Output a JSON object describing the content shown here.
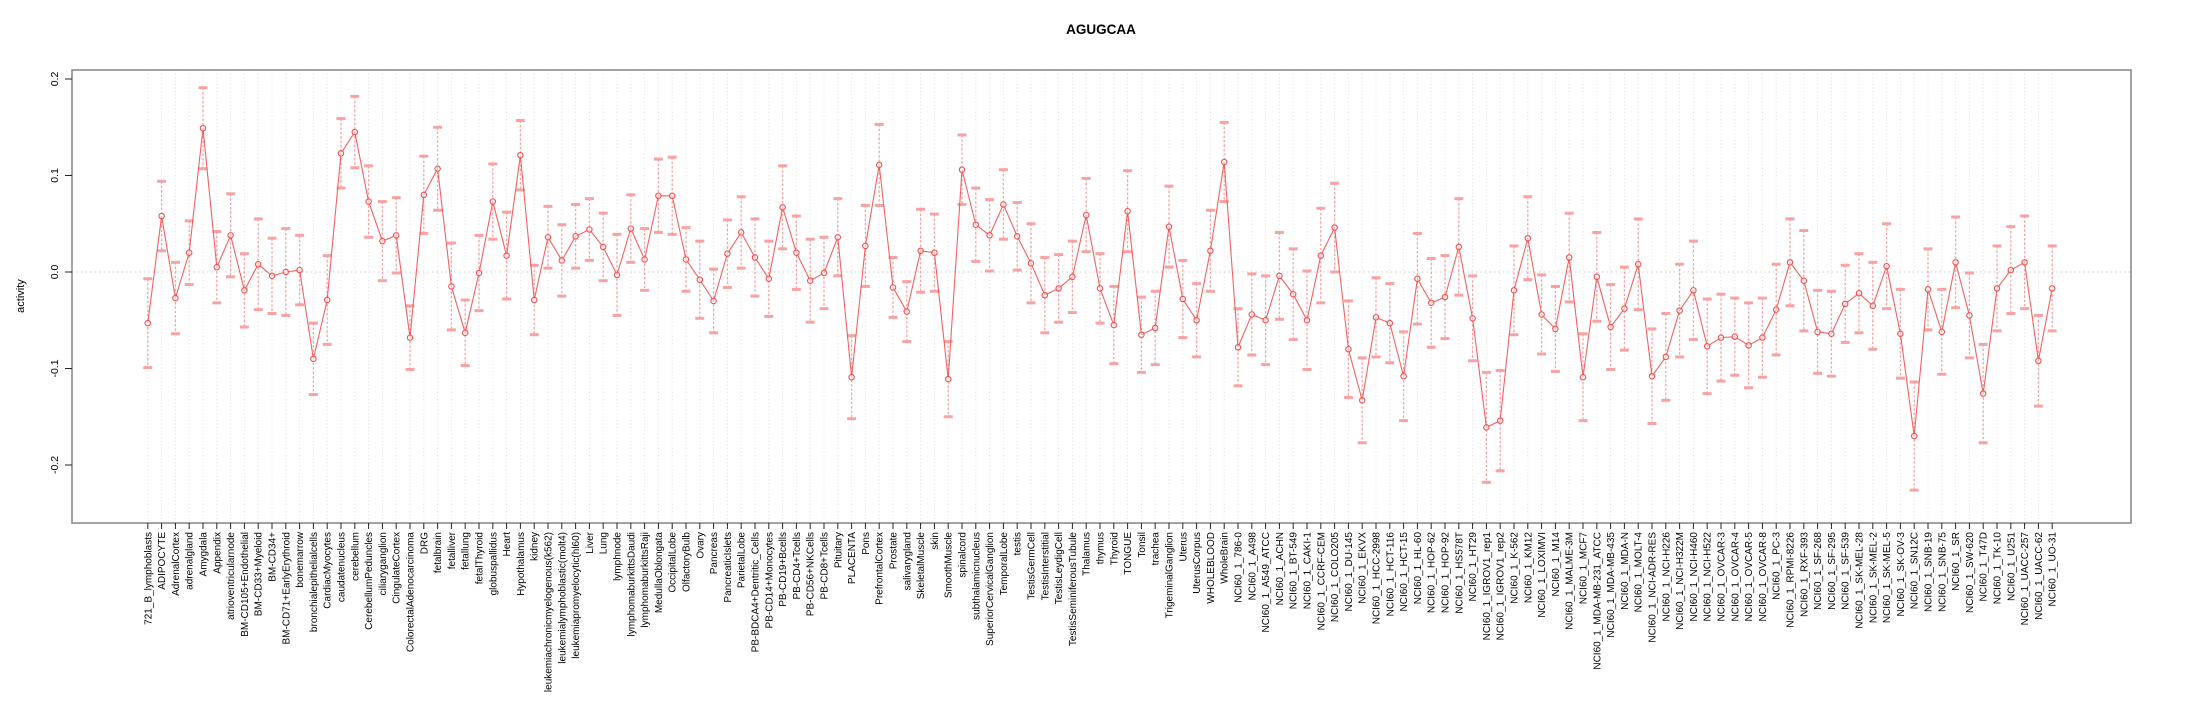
{
  "figure": {
    "title": "AGUGCAA",
    "ylabel": "activity"
  },
  "chart_data": {
    "type": "line",
    "title": "AGUGCAA",
    "xlabel": "",
    "ylabel": "activity",
    "ylim": [
      -0.26,
      0.21
    ],
    "yticks": [
      -0.2,
      -0.1,
      0.0,
      0.1,
      0.2
    ],
    "legend": "none",
    "grid": "vertical dotted line per category; dotted horizontal line at 0",
    "marker": "open-circle",
    "series_color": "#f25050",
    "errorbar_color": "#f89f9f",
    "grid_color": "#dedede",
    "box_color": "#8c8c8c",
    "categories": [
      "721_B_lymphoblasts",
      "ADIPOCYTE",
      "AdrenalCortex",
      "adrenalgland",
      "Amygdala",
      "Appendix",
      "atrioventricularnode",
      "BM-CD105+Endothelial",
      "BM-CD33+Myeloid",
      "BM-CD34+",
      "BM-CD71+EarlyErythroid",
      "bonemarrow",
      "bronchialepithelialcells",
      "CardiacMyocytes",
      "caudatenucleus",
      "cerebellum",
      "CerebellumPeduncles",
      "ciliaryganglion",
      "CingulateCortex",
      "ColorectalAdenocarcinoma",
      "DRG",
      "fetalbrain",
      "fetalliver",
      "fetallung",
      "fetalThyroid",
      "globuspallidus",
      "Heart",
      "Hypothalamus",
      "kidney",
      "leukemiachronicmyelogenous(k562)",
      "leukemialymphoblastic(molt4)",
      "leukemiapromyelocytic(hl60)",
      "Liver",
      "Lung",
      "lymphnode",
      "lymphomaburkittsDaudi",
      "lymphomaburkittsRaji",
      "MedullaOblongata",
      "OccipitalLobe",
      "OlfactoryBulb",
      "Ovary",
      "Pancreas",
      "PancreaticIslets",
      "ParietalLobe",
      "PB-BDCA4+Dentritic_Cells",
      "PB-CD14+Monocytes",
      "PB-CD19+Bcells",
      "PB-CD4+Tcells",
      "PB-CD56+NKCells",
      "PB-CD8+Tcells",
      "Pituitary",
      "PLACENTA",
      "Pons",
      "PrefrontalCortex",
      "Prostate",
      "salivarygland",
      "SkeletalMuscle",
      "skin",
      "SmoothMuscle",
      "spinalcord",
      "subthalamicnucleus",
      "SuperiorCervicalGanglion",
      "TemporalLobe",
      "testis",
      "TestisGermCell",
      "TestisInterstitial",
      "TestisLeydigCell",
      "TestisSeminiferousTubule",
      "Thalamus",
      "thymus",
      "Thyroid",
      "TONGUE",
      "Tonsil",
      "trachea",
      "TrigeminalGanglion",
      "Uterus",
      "UterusCorpus",
      "WHOLEBLOOD",
      "WholeBrain",
      "NCI60_1_786-0",
      "NCI60_1_A498",
      "NCI60_1_A549_ATCC",
      "NCI60_1_ACHN",
      "NCI60_1_BT-549",
      "NCI60_1_CAKI-1",
      "NCI60_1_CCRF-CEM",
      "NCI60_1_COLO205",
      "NCI60_1_DU-145",
      "NCI60_1_EKVX",
      "NCI60_1_HCC-2998",
      "NCI60_1_HCT-116",
      "NCI60_1_HCT-15",
      "NCI60_1_HL-60",
      "NCI60_1_HOP-62",
      "NCI60_1_HOP-92",
      "NCI60_1_HS578T",
      "NCI60_1_HT29",
      "NCI60_1_IGROV1_rep1",
      "NCI60_1_IGROV1_rep2",
      "NCI60_1_K-562",
      "NCI60_1_KM12",
      "NCI60_1_LOXIMVI",
      "NCI60_1_M14",
      "NCI60_1_MALME-3M",
      "NCI60_1_MCF7",
      "NCI60_1_MDA-MB-231_ATCC",
      "NCI60_1_MDA-MB-435",
      "NCI60_1_MDA-N",
      "NCI60_1_MOLT-4",
      "NCI60_1_NCI-ADR-RES",
      "NCI60_1_NCI-H226",
      "NCI60_1_NCI-H322M",
      "NCI60_1_NCI-H460",
      "NCI60_1_NCI-H522",
      "NCI60_1_OVCAR-3",
      "NCI60_1_OVCAR-4",
      "NCI60_1_OVCAR-5",
      "NCI60_1_OVCAR-8",
      "NCI60_1_PC-3",
      "NCI60_1_RPMI-8226",
      "NCI60_1_RXF-393",
      "NCI60_1_SF-268",
      "NCI60_1_SF-295",
      "NCI60_1_SF-539",
      "NCI60_1_SK-MEL-28",
      "NCI60_1_SK-MEL-2",
      "NCI60_1_SK-MEL-5",
      "NCI60_1_SK-OV-3",
      "NCI60_1_SN12C",
      "NCI60_1_SNB-19",
      "NCI60_1_SNB-75",
      "NCI60_1_SR",
      "NCI60_1_SW-620",
      "NCI60_1_T47D",
      "NCI60_1_TK-10",
      "NCI60_1_U251",
      "NCI60_1_UACC-257",
      "NCI60_1_UACC-62",
      "NCI60_1_UO-31"
    ],
    "values": [
      -0.053,
      0.058,
      -0.027,
      0.02,
      0.149,
      0.005,
      0.038,
      -0.019,
      0.008,
      -0.004,
      0.0,
      0.002,
      -0.09,
      -0.029,
      0.123,
      0.145,
      0.073,
      0.032,
      0.038,
      -0.068,
      0.08,
      0.107,
      -0.015,
      -0.063,
      -0.001,
      0.073,
      0.017,
      0.121,
      -0.029,
      0.036,
      0.012,
      0.037,
      0.044,
      0.026,
      -0.003,
      0.045,
      0.013,
      0.079,
      0.079,
      0.013,
      -0.008,
      -0.03,
      0.019,
      0.041,
      0.015,
      -0.007,
      0.067,
      0.02,
      -0.009,
      -0.001,
      0.036,
      -0.109,
      0.027,
      0.111,
      -0.016,
      -0.041,
      0.022,
      0.02,
      -0.111,
      0.106,
      0.049,
      0.038,
      0.07,
      0.037,
      0.009,
      -0.024,
      -0.017,
      -0.005,
      0.059,
      -0.017,
      -0.055,
      0.063,
      -0.065,
      -0.058,
      0.047,
      -0.028,
      -0.05,
      0.022,
      0.114,
      -0.078,
      -0.044,
      -0.05,
      -0.004,
      -0.023,
      -0.05,
      0.017,
      0.046,
      -0.08,
      -0.133,
      -0.047,
      -0.053,
      -0.108,
      -0.007,
      -0.032,
      -0.026,
      0.026,
      -0.048,
      -0.161,
      -0.154,
      -0.019,
      0.035,
      -0.044,
      -0.059,
      0.015,
      -0.109,
      -0.005,
      -0.057,
      -0.038,
      0.008,
      -0.108,
      -0.088,
      -0.04,
      -0.019,
      -0.077,
      -0.068,
      -0.067,
      -0.076,
      -0.068,
      -0.039,
      0.01,
      -0.009,
      -0.062,
      -0.064,
      -0.033,
      -0.022,
      -0.035,
      0.006,
      -0.064,
      -0.17,
      -0.018,
      -0.062,
      0.01,
      -0.045,
      -0.126,
      -0.017,
      0.002,
      0.01,
      -0.092,
      -0.017
    ],
    "errors": [
      0.046,
      0.036,
      0.037,
      0.033,
      0.042,
      0.037,
      0.043,
      0.038,
      0.047,
      0.039,
      0.045,
      0.036,
      0.037,
      0.046,
      0.036,
      0.037,
      0.037,
      0.041,
      0.039,
      0.033,
      0.04,
      0.043,
      0.045,
      0.034,
      0.039,
      0.039,
      0.045,
      0.036,
      0.036,
      0.032,
      0.037,
      0.033,
      0.032,
      0.035,
      0.042,
      0.035,
      0.032,
      0.038,
      0.04,
      0.033,
      0.04,
      0.033,
      0.035,
      0.037,
      0.04,
      0.039,
      0.043,
      0.038,
      0.043,
      0.037,
      0.04,
      0.043,
      0.042,
      0.042,
      0.031,
      0.031,
      0.043,
      0.04,
      0.039,
      0.036,
      0.038,
      0.037,
      0.036,
      0.035,
      0.041,
      0.039,
      0.035,
      0.037,
      0.038,
      0.036,
      0.04,
      0.042,
      0.039,
      0.038,
      0.042,
      0.04,
      0.038,
      0.042,
      0.041,
      0.04,
      0.042,
      0.046,
      0.045,
      0.047,
      0.051,
      0.049,
      0.046,
      0.05,
      0.044,
      0.041,
      0.041,
      0.046,
      0.047,
      0.046,
      0.043,
      0.05,
      0.044,
      0.057,
      0.052,
      0.046,
      0.043,
      0.041,
      0.044,
      0.046,
      0.045,
      0.046,
      0.044,
      0.043,
      0.047,
      0.049,
      0.045,
      0.048,
      0.051,
      0.049,
      0.045,
      0.04,
      0.044,
      0.041,
      0.047,
      0.045,
      0.052,
      0.043,
      0.044,
      0.04,
      0.041,
      0.045,
      0.044,
      0.046,
      0.056,
      0.042,
      0.044,
      0.047,
      0.044,
      0.051,
      0.044,
      0.045,
      0.048,
      0.047,
      0.044
    ]
  }
}
